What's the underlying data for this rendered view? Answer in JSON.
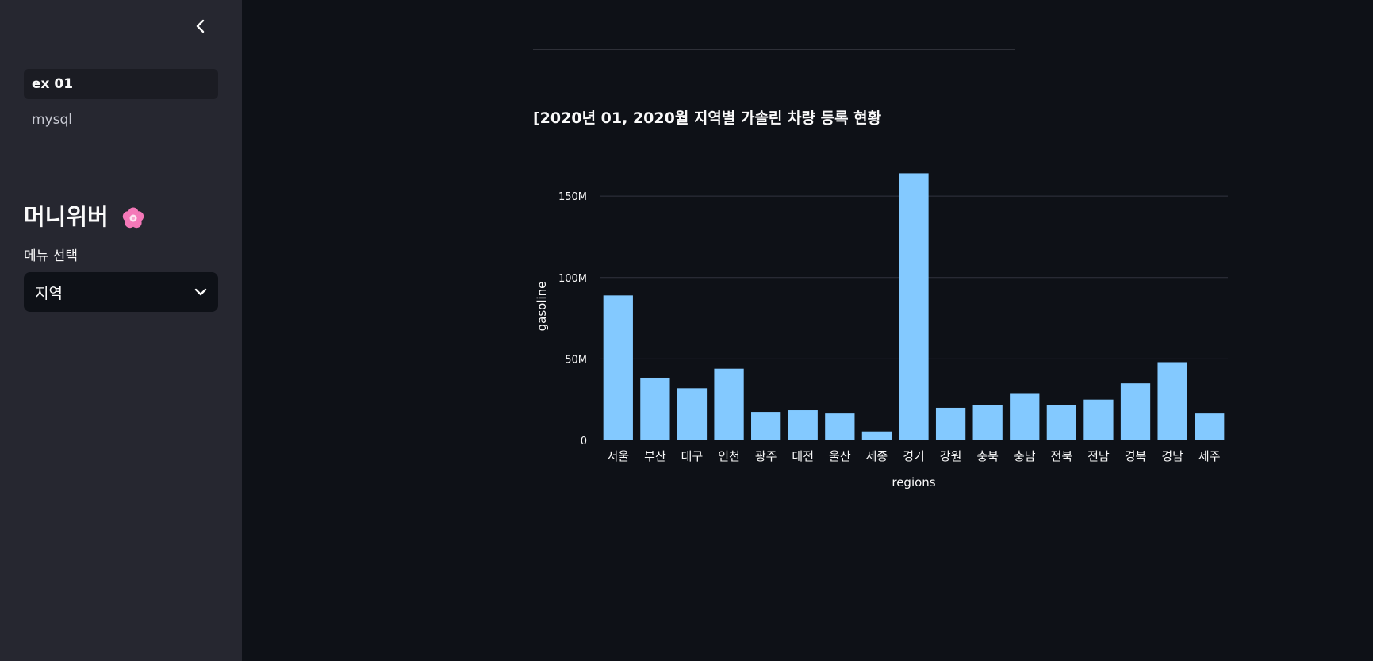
{
  "sidebar": {
    "collapse_icon": "chevron-left-icon",
    "nav_items": [
      {
        "label": "ex 01",
        "active": true
      },
      {
        "label": "mysql",
        "active": false
      }
    ],
    "app_title": "머니위버",
    "title_icon": "cherry-blossom-icon",
    "menu_label": "메뉴 선택",
    "menu_value": "지역",
    "menu_icon": "chevron-down-icon"
  },
  "main": {
    "chart_title": "[2020년 01, 2020월 지역별 가솔린 차량 등록 현황"
  },
  "chart_data": {
    "type": "bar",
    "categories": [
      "서울",
      "부산",
      "대구",
      "인천",
      "광주",
      "대전",
      "울산",
      "세종",
      "경기",
      "강원",
      "충북",
      "충남",
      "전북",
      "전남",
      "경북",
      "경남",
      "제주"
    ],
    "values": [
      89000000,
      38500000,
      32000000,
      44000000,
      17500000,
      18500000,
      16500000,
      5500000,
      164000000,
      20000000,
      21500000,
      29000000,
      21500000,
      25000000,
      35000000,
      48000000,
      16500000
    ],
    "xlabel": "regions",
    "ylabel": "gasoline",
    "yticks": [
      0,
      50000000,
      100000000,
      150000000
    ],
    "ytick_labels": [
      "0",
      "50M",
      "100M",
      "150M"
    ],
    "ylim": [
      0,
      172000000
    ],
    "grid": true,
    "bar_color": "#83c9ff",
    "background": "#0e1117"
  }
}
